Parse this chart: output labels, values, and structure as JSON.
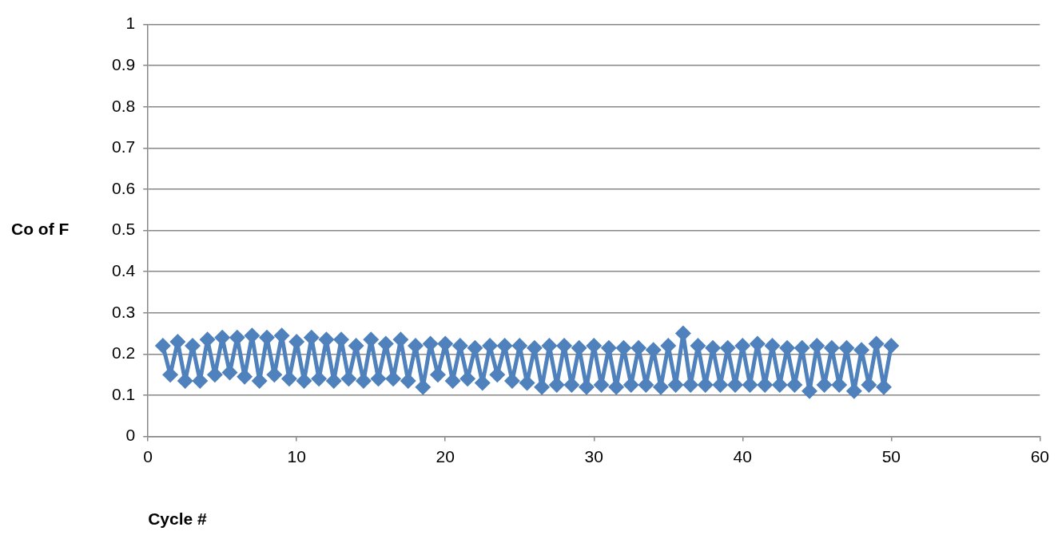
{
  "chart_data": {
    "type": "line",
    "xlabel": "Cycle #",
    "ylabel": "Co of F",
    "xlim": [
      0,
      60
    ],
    "xticks": [
      0,
      10,
      20,
      30,
      40,
      50,
      60
    ],
    "ylim": [
      0,
      1
    ],
    "yticks": [
      0,
      0.1,
      0.2,
      0.3,
      0.4,
      0.5,
      0.6,
      0.7,
      0.8,
      0.9,
      1
    ],
    "grid": "y",
    "legend": false,
    "marker": "diamond",
    "line_style": "solid",
    "series": [
      {
        "color": "#4f81bd",
        "x": [
          1,
          1.5,
          2,
          2.5,
          3,
          3.5,
          4,
          4.5,
          5,
          5.5,
          6,
          6.5,
          7,
          7.5,
          8,
          8.5,
          9,
          9.5,
          10,
          10.5,
          11,
          11.5,
          12,
          12.5,
          13,
          13.5,
          14,
          14.5,
          15,
          15.5,
          16,
          16.5,
          17,
          17.5,
          18,
          18.5,
          19,
          19.5,
          20,
          20.5,
          21,
          21.5,
          22,
          22.5,
          23,
          23.5,
          24,
          24.5,
          25,
          25.5,
          26,
          26.5,
          27,
          27.5,
          28,
          28.5,
          29,
          29.5,
          30,
          30.5,
          31,
          31.5,
          32,
          32.5,
          33,
          33.5,
          34,
          34.5,
          35,
          35.5,
          36,
          36.5,
          37,
          37.5,
          38,
          38.5,
          39,
          39.5,
          40,
          40.5,
          41,
          41.5,
          42,
          42.5,
          43,
          43.5,
          44,
          44.5,
          45,
          45.5,
          46,
          46.5,
          47,
          47.5,
          48,
          48.5,
          49,
          49.5,
          50
        ],
        "values": [
          0.22,
          0.15,
          0.23,
          0.135,
          0.22,
          0.135,
          0.235,
          0.15,
          0.24,
          0.155,
          0.24,
          0.145,
          0.245,
          0.135,
          0.24,
          0.15,
          0.245,
          0.14,
          0.23,
          0.135,
          0.24,
          0.14,
          0.235,
          0.135,
          0.235,
          0.14,
          0.22,
          0.135,
          0.235,
          0.14,
          0.225,
          0.14,
          0.235,
          0.135,
          0.22,
          0.12,
          0.225,
          0.15,
          0.225,
          0.135,
          0.22,
          0.14,
          0.215,
          0.13,
          0.22,
          0.15,
          0.22,
          0.135,
          0.22,
          0.13,
          0.215,
          0.12,
          0.22,
          0.125,
          0.22,
          0.125,
          0.215,
          0.12,
          0.22,
          0.125,
          0.215,
          0.12,
          0.215,
          0.125,
          0.215,
          0.125,
          0.21,
          0.12,
          0.22,
          0.125,
          0.25,
          0.125,
          0.22,
          0.125,
          0.215,
          0.125,
          0.215,
          0.125,
          0.22,
          0.125,
          0.225,
          0.125,
          0.22,
          0.125,
          0.215,
          0.125,
          0.215,
          0.11,
          0.22,
          0.125,
          0.215,
          0.125,
          0.215,
          0.11,
          0.21,
          0.125,
          0.225,
          0.12,
          0.22
        ]
      }
    ]
  }
}
